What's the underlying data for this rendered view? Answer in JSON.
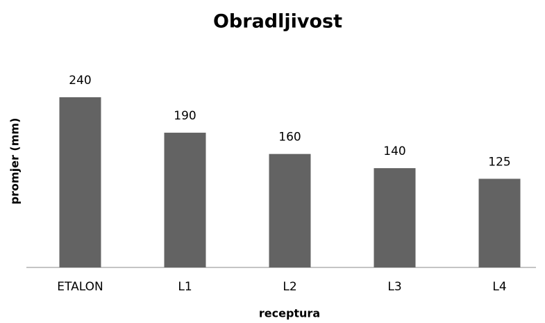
{
  "chart_data": {
    "type": "bar",
    "title": "Obradljivost",
    "x_label": "receptura",
    "y_label": "promjer (mm)",
    "categories": [
      "ETALON",
      "L1",
      "L2",
      "L3",
      "L4"
    ],
    "values": [
      240,
      190,
      160,
      140,
      125
    ],
    "color": "#636363",
    "ylim": [
      0,
      240
    ]
  }
}
